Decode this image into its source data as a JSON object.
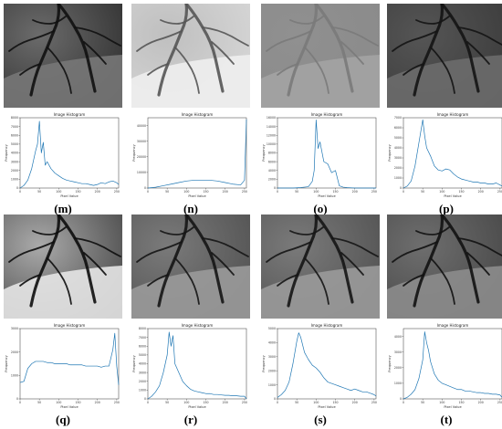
{
  "figure": {
    "panels": [
      {
        "label": "(m)",
        "image_tone": "dark-cropped",
        "hist_title": "Image Histogram",
        "xlabel": "Pixel Value",
        "ylabel": "Frequency",
        "yticks": [
          "0",
          "1000",
          "2000",
          "3000",
          "4000",
          "5000",
          "6000",
          "7000",
          "8000"
        ],
        "xticks": [
          "0",
          "50",
          "100",
          "150",
          "200",
          "250"
        ]
      },
      {
        "label": "(n)",
        "image_tone": "bright-washed",
        "hist_title": "Image Histogram",
        "xlabel": "Pixel Value",
        "ylabel": "Frequency",
        "yticks": [
          "0",
          "10000",
          "20000",
          "30000",
          "40000"
        ],
        "xticks": [
          "0",
          "50",
          "100",
          "150",
          "200",
          "250"
        ]
      },
      {
        "label": "(o)",
        "image_tone": "flat-gray",
        "hist_title": "Image Histogram",
        "xlabel": "Pixel Value",
        "ylabel": "Frequency",
        "yticks": [
          "0",
          "2000",
          "4000",
          "6000",
          "8000",
          "10000",
          "12000",
          "14000",
          "16000"
        ],
        "xticks": [
          "0",
          "50",
          "100",
          "150",
          "200",
          "250"
        ]
      },
      {
        "label": "(p)",
        "image_tone": "dark",
        "hist_title": "Image Histogram",
        "xlabel": "Pixel Value",
        "ylabel": "Frequency",
        "yticks": [
          "0",
          "1000",
          "2000",
          "3000",
          "4000",
          "5000",
          "6000",
          "7000"
        ],
        "xticks": [
          "0",
          "50",
          "100",
          "150",
          "200",
          "250"
        ]
      },
      {
        "label": "(q)",
        "image_tone": "high-contrast",
        "hist_title": "Image Histogram",
        "xlabel": "Pixel Value",
        "ylabel": "Frequency",
        "yticks": [
          "0",
          "1000",
          "2000",
          "3000"
        ],
        "xticks": [
          "0",
          "50",
          "100",
          "150",
          "200",
          "250"
        ]
      },
      {
        "label": "(r)",
        "image_tone": "enhanced",
        "hist_title": "Image Histogram",
        "xlabel": "Pixel Value",
        "ylabel": "Frequency",
        "yticks": [
          "0",
          "1000",
          "2000",
          "3000",
          "4000",
          "5000",
          "6000",
          "7000",
          "8000"
        ],
        "xticks": [
          "0",
          "50",
          "100",
          "150",
          "200",
          "250"
        ]
      },
      {
        "label": "(s)",
        "image_tone": "enhanced",
        "hist_title": "Image Histogram",
        "xlabel": "Pixel Value",
        "ylabel": "Frequency",
        "yticks": [
          "0",
          "1000",
          "2000",
          "3000",
          "4000",
          "5000"
        ],
        "xticks": [
          "0",
          "50",
          "100",
          "150",
          "200",
          "250"
        ]
      },
      {
        "label": "(t)",
        "image_tone": "enhanced-dark",
        "hist_title": "Image Histogram",
        "xlabel": "Pixel Value",
        "ylabel": "Frequency",
        "yticks": [
          "0",
          "1000",
          "2000",
          "3000",
          "4000"
        ],
        "xticks": [
          "0",
          "50",
          "100",
          "150",
          "200",
          "250"
        ]
      }
    ]
  },
  "chart_data": [
    {
      "type": "line",
      "title": "Image Histogram",
      "xlabel": "Pixel Value",
      "ylabel": "Frequency",
      "xlim": [
        0,
        255
      ],
      "ylim": [
        0,
        8000
      ],
      "x": [
        0,
        10,
        20,
        30,
        40,
        45,
        50,
        55,
        60,
        65,
        70,
        80,
        90,
        100,
        110,
        120,
        130,
        140,
        150,
        160,
        170,
        180,
        190,
        200,
        210,
        220,
        230,
        240,
        250,
        255
      ],
      "y": [
        0,
        300,
        900,
        2200,
        4200,
        5000,
        7600,
        4000,
        5200,
        2600,
        3000,
        2200,
        1700,
        1400,
        1100,
        900,
        800,
        700,
        600,
        500,
        500,
        400,
        300,
        400,
        600,
        500,
        700,
        800,
        600,
        400
      ]
    },
    {
      "type": "line",
      "title": "Image Histogram",
      "xlabel": "Pixel Value",
      "ylabel": "Frequency",
      "xlim": [
        0,
        255
      ],
      "ylim": [
        0,
        45000
      ],
      "x": [
        0,
        20,
        40,
        60,
        80,
        100,
        120,
        140,
        160,
        180,
        200,
        220,
        240,
        250,
        255
      ],
      "y": [
        0,
        500,
        1500,
        2500,
        3500,
        4500,
        5000,
        5000,
        5000,
        4500,
        3500,
        2500,
        2000,
        5000,
        44000
      ]
    },
    {
      "type": "line",
      "title": "Image Histogram",
      "xlabel": "Pixel Value",
      "ylabel": "Frequency",
      "xlim": [
        0,
        255
      ],
      "ylim": [
        0,
        16000
      ],
      "x": [
        0,
        20,
        40,
        60,
        80,
        90,
        95,
        100,
        105,
        110,
        120,
        130,
        140,
        150,
        160,
        170,
        180,
        200,
        220,
        255
      ],
      "y": [
        0,
        0,
        0,
        100,
        300,
        1500,
        4000,
        15500,
        9000,
        10500,
        6000,
        5500,
        3500,
        4000,
        500,
        200,
        100,
        0,
        0,
        0
      ]
    },
    {
      "type": "line",
      "title": "Image Histogram",
      "xlabel": "Pixel Value",
      "ylabel": "Frequency",
      "xlim": [
        0,
        255
      ],
      "ylim": [
        0,
        7000
      ],
      "x": [
        0,
        10,
        20,
        30,
        40,
        50,
        55,
        60,
        70,
        80,
        90,
        100,
        110,
        120,
        130,
        140,
        150,
        160,
        170,
        180,
        190,
        200,
        210,
        220,
        230,
        240,
        250,
        255
      ],
      "y": [
        0,
        200,
        700,
        2200,
        4500,
        6800,
        5200,
        4000,
        3200,
        2200,
        1800,
        1700,
        1900,
        1800,
        1400,
        1100,
        900,
        800,
        700,
        600,
        600,
        500,
        500,
        400,
        400,
        500,
        300,
        200
      ]
    },
    {
      "type": "line",
      "title": "Image Histogram",
      "xlabel": "Pixel Value",
      "ylabel": "Frequency",
      "xlim": [
        0,
        255
      ],
      "ylim": [
        0,
        3000
      ],
      "x": [
        0,
        10,
        20,
        30,
        40,
        50,
        60,
        70,
        80,
        90,
        100,
        110,
        120,
        130,
        140,
        150,
        160,
        170,
        180,
        190,
        200,
        210,
        220,
        230,
        240,
        245,
        250,
        255
      ],
      "y": [
        700,
        750,
        1300,
        1500,
        1600,
        1600,
        1600,
        1550,
        1550,
        1500,
        1500,
        1500,
        1500,
        1450,
        1450,
        1450,
        1450,
        1400,
        1400,
        1400,
        1400,
        1350,
        1400,
        1400,
        2100,
        2800,
        1400,
        600
      ]
    },
    {
      "type": "line",
      "title": "Image Histogram",
      "xlabel": "Pixel Value",
      "ylabel": "Frequency",
      "xlim": [
        0,
        255
      ],
      "ylim": [
        0,
        8000
      ],
      "x": [
        0,
        10,
        20,
        30,
        40,
        50,
        55,
        60,
        65,
        70,
        80,
        90,
        100,
        110,
        120,
        130,
        140,
        150,
        160,
        170,
        180,
        190,
        200,
        210,
        220,
        230,
        240,
        250,
        255
      ],
      "y": [
        0,
        300,
        800,
        1500,
        3000,
        5000,
        7600,
        6000,
        7200,
        4000,
        3000,
        2000,
        1500,
        1100,
        900,
        800,
        700,
        600,
        600,
        500,
        500,
        450,
        400,
        400,
        350,
        350,
        300,
        300,
        0
      ]
    },
    {
      "type": "line",
      "title": "Image Histogram",
      "xlabel": "Pixel Value",
      "ylabel": "Frequency",
      "xlim": [
        0,
        255
      ],
      "ylim": [
        0,
        5000
      ],
      "x": [
        0,
        10,
        20,
        30,
        40,
        50,
        55,
        60,
        70,
        80,
        90,
        100,
        110,
        120,
        130,
        140,
        150,
        160,
        170,
        180,
        190,
        200,
        210,
        220,
        230,
        240,
        250,
        255
      ],
      "y": [
        100,
        300,
        600,
        1200,
        2500,
        4100,
        4700,
        4400,
        3300,
        2800,
        2400,
        2200,
        1900,
        1500,
        1200,
        1100,
        1000,
        900,
        800,
        700,
        600,
        700,
        600,
        500,
        500,
        400,
        300,
        200
      ]
    },
    {
      "type": "line",
      "title": "Image Histogram",
      "xlabel": "Pixel Value",
      "ylabel": "Frequency",
      "xlim": [
        0,
        255
      ],
      "ylim": [
        0,
        4500
      ],
      "x": [
        0,
        10,
        20,
        30,
        40,
        50,
        55,
        60,
        65,
        70,
        80,
        90,
        100,
        110,
        120,
        130,
        140,
        150,
        160,
        170,
        180,
        190,
        200,
        210,
        220,
        230,
        240,
        250,
        255
      ],
      "y": [
        0,
        100,
        300,
        600,
        1300,
        2500,
        4300,
        3600,
        3100,
        2400,
        1600,
        1200,
        1000,
        900,
        800,
        700,
        600,
        600,
        500,
        500,
        450,
        400,
        400,
        350,
        350,
        300,
        300,
        250,
        100
      ]
    }
  ]
}
